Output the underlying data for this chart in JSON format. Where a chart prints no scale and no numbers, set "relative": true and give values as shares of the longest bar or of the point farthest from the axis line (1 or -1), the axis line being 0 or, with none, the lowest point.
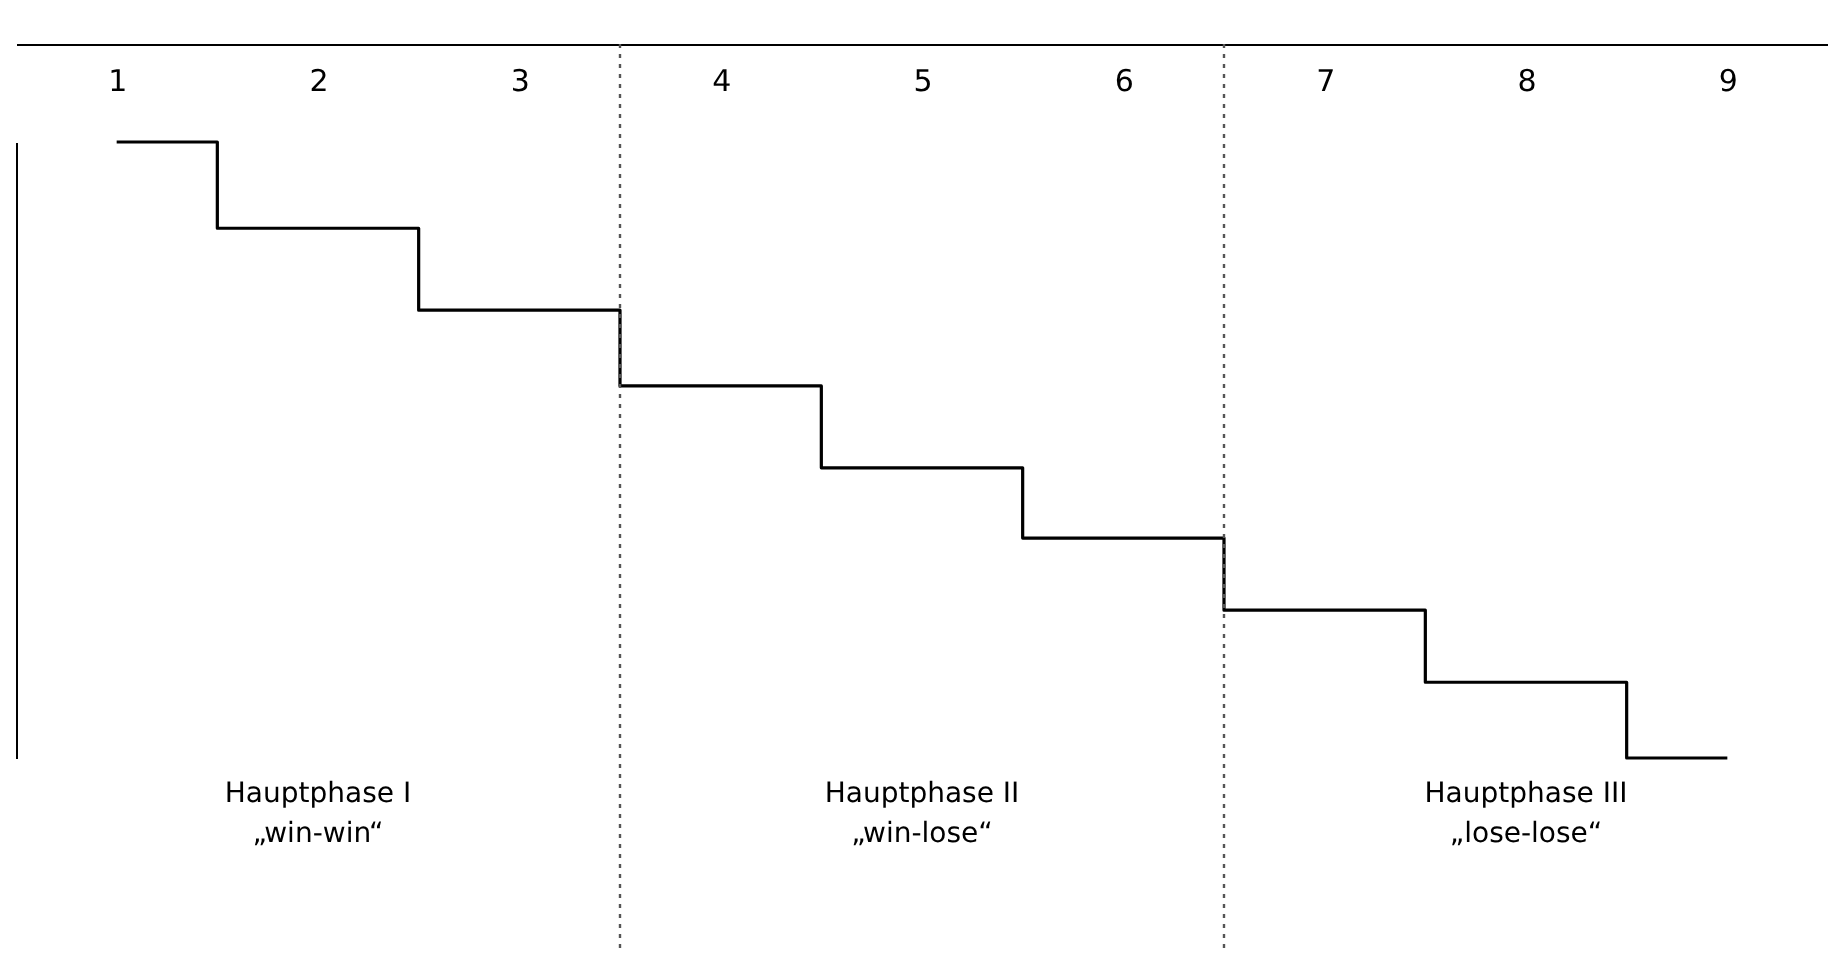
{
  "chart_data": {
    "type": "step",
    "relative": true,
    "x": [
      1,
      2,
      3,
      4,
      5,
      6,
      7,
      8,
      9
    ],
    "xlim": [
      0.5,
      9.5
    ],
    "xticks": [
      1,
      2,
      3,
      4,
      5,
      6,
      7,
      8,
      9
    ],
    "series": [
      {
        "color": "#000000",
        "values": [
          1,
          0.86,
          0.727,
          0.604,
          0.471,
          0.357,
          0.24,
          0.123,
          0
        ]
      }
    ],
    "ref_lines": [
      {
        "axis": "x",
        "value": 3.5,
        "color": "#555555",
        "line_style": "dotted"
      },
      {
        "axis": "x",
        "value": 6.5,
        "color": "#555555",
        "line_style": "dotted"
      }
    ],
    "annotations": [
      "Hauptphase I\n„win-win“",
      "Hauptphase II\n„win-lose“",
      "Hauptphase III\n„lose-lose“"
    ],
    "tick_labels": "x",
    "grid": false,
    "legend": false
  }
}
